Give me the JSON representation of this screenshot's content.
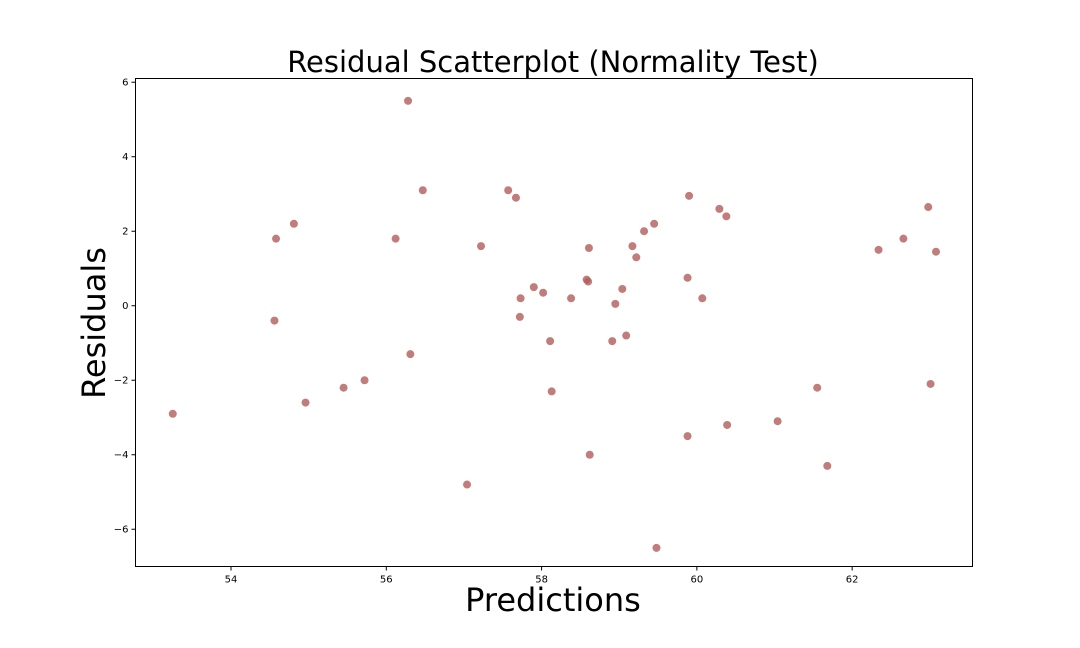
{
  "chart_data": {
    "type": "scatter",
    "title": "Residual Scatterplot (Normality Test)",
    "xlabel": "Predictions",
    "ylabel": "Residuals",
    "xlim": [
      52.77,
      63.55
    ],
    "ylim": [
      -7.0,
      6.1
    ],
    "xticks": [
      54,
      56,
      58,
      60,
      62
    ],
    "yticks": [
      6,
      4,
      2,
      0,
      -2,
      -4,
      -6
    ],
    "ytick_labels": [
      "6",
      "4",
      "2",
      "0",
      "−2",
      "−4",
      "−6"
    ],
    "grid": false,
    "marker_color": "#b05c5a",
    "x": [
      53.25,
      54.56,
      54.58,
      54.81,
      54.96,
      55.45,
      55.72,
      56.12,
      56.28,
      56.31,
      56.47,
      57.04,
      57.22,
      57.57,
      57.67,
      57.72,
      57.73,
      57.9,
      58.02,
      58.11,
      58.13,
      58.38,
      58.58,
      58.6,
      58.61,
      58.62,
      58.91,
      58.95,
      59.04,
      59.09,
      59.17,
      59.22,
      59.32,
      59.45,
      59.48,
      59.88,
      59.88,
      59.9,
      60.07,
      60.29,
      60.38,
      60.39,
      61.04,
      61.55,
      61.68,
      62.34,
      62.66,
      62.98,
      63.01,
      63.08
    ],
    "y": [
      -2.9,
      -0.4,
      1.8,
      2.2,
      -2.6,
      -2.2,
      -2.0,
      1.8,
      5.5,
      -1.3,
      3.1,
      -4.8,
      1.6,
      3.1,
      2.9,
      -0.3,
      0.2,
      0.5,
      0.35,
      -0.95,
      -2.3,
      0.2,
      0.7,
      0.65,
      1.55,
      -4.0,
      -0.95,
      0.05,
      0.45,
      -0.8,
      1.6,
      1.3,
      2.0,
      2.2,
      -6.5,
      -3.5,
      0.75,
      2.95,
      0.2,
      2.6,
      2.4,
      -3.2,
      -3.1,
      -2.2,
      -4.3,
      1.5,
      1.8,
      2.65,
      -2.1,
      1.45
    ]
  }
}
